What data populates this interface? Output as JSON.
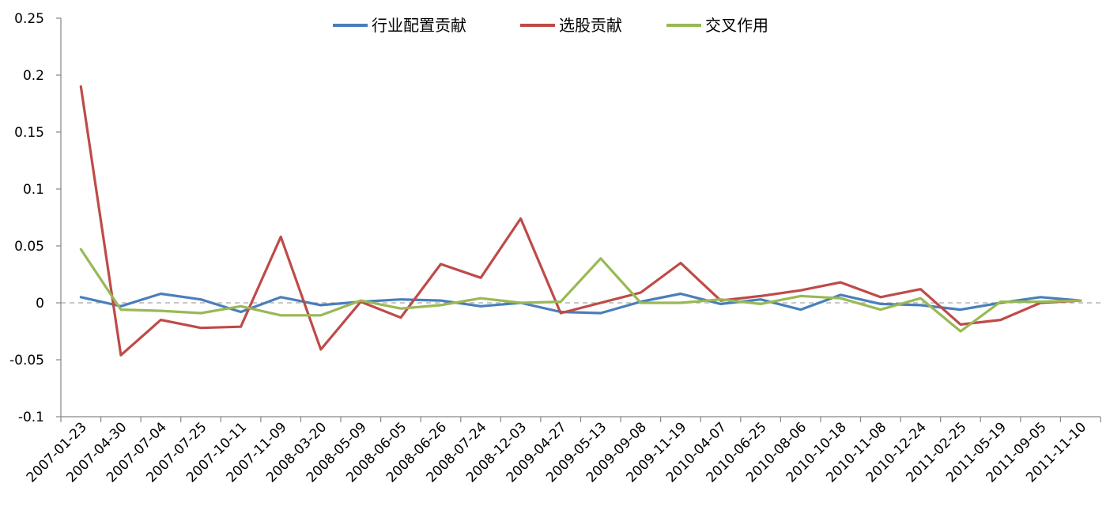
{
  "chart_data": {
    "type": "line",
    "title": "",
    "xlabel": "",
    "ylabel": "",
    "ylim": [
      -0.1,
      0.25
    ],
    "y_ticks": [
      "0.25",
      "0.2",
      "0.15",
      "0.1",
      "0.05",
      "0",
      "-0.05",
      "-0.1"
    ],
    "legend_position": "top-center",
    "zero_line": "dashed",
    "categories": [
      "2007-01-23",
      "2007-04-30",
      "2007-07-04",
      "2007-07-25",
      "2007-10-11",
      "2007-11-09",
      "2008-03-20",
      "2008-05-09",
      "2008-06-05",
      "2008-06-26",
      "2008-07-24",
      "2008-12-03",
      "2009-04-27",
      "2009-05-13",
      "2009-09-08",
      "2009-11-19",
      "2010-04-07",
      "2010-06-25",
      "2010-08-06",
      "2010-10-18",
      "2010-11-08",
      "2010-12-24",
      "2011-02-25",
      "2011-05-19",
      "2011-09-05",
      "2011-11-10"
    ],
    "series": [
      {
        "name": "行业配置贡献",
        "color": "#4a7ebb",
        "values": [
          0.005,
          -0.003,
          0.008,
          0.003,
          -0.008,
          0.005,
          -0.002,
          0.001,
          0.003,
          0.002,
          -0.003,
          0.0,
          -0.008,
          -0.009,
          0.001,
          0.008,
          -0.001,
          0.003,
          -0.006,
          0.007,
          -0.001,
          -0.002,
          -0.006,
          0.0,
          0.005,
          0.002
        ]
      },
      {
        "name": "选股贡献",
        "color": "#be4b48",
        "values": [
          0.19,
          -0.046,
          -0.015,
          -0.022,
          -0.021,
          0.058,
          -0.041,
          0.001,
          -0.013,
          0.034,
          0.022,
          0.074,
          -0.009,
          0.0,
          0.009,
          0.035,
          0.002,
          0.006,
          0.011,
          0.018,
          0.005,
          0.012,
          -0.019,
          -0.015,
          0.0,
          0.002
        ]
      },
      {
        "name": "交叉作用",
        "color": "#98b954",
        "values": [
          0.047,
          -0.006,
          -0.007,
          -0.009,
          -0.003,
          -0.011,
          -0.011,
          0.002,
          -0.005,
          -0.002,
          0.004,
          0.0,
          0.001,
          0.039,
          0.0,
          0.0,
          0.003,
          -0.001,
          0.006,
          0.004,
          -0.006,
          0.004,
          -0.025,
          0.001,
          0.001,
          0.002
        ]
      }
    ]
  }
}
